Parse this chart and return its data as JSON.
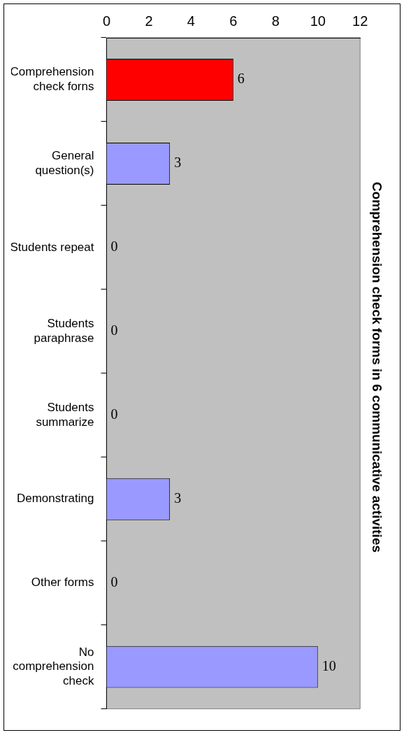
{
  "chart_data": {
    "type": "bar",
    "orientation": "horizontal",
    "title": "Comprehension check forms in 6 communicative activities",
    "categories": [
      "Comprehension check forns",
      "General question(s)",
      "Students repeat",
      "Students paraphrase",
      "Students summarize",
      "Demonstrating",
      "Other forms",
      "No comprehension check"
    ],
    "values": [
      6,
      3,
      0,
      0,
      0,
      3,
      0,
      10
    ],
    "colors": [
      "#ff0000",
      "#9999ff",
      "#9999ff",
      "#9999ff",
      "#9999ff",
      "#9999ff",
      "#9999ff",
      "#9999ff"
    ],
    "xlim": [
      0,
      12
    ],
    "xticks": [
      0,
      2,
      4,
      6,
      8,
      10,
      12
    ],
    "grid": false,
    "legend": false,
    "data_labels": true
  }
}
